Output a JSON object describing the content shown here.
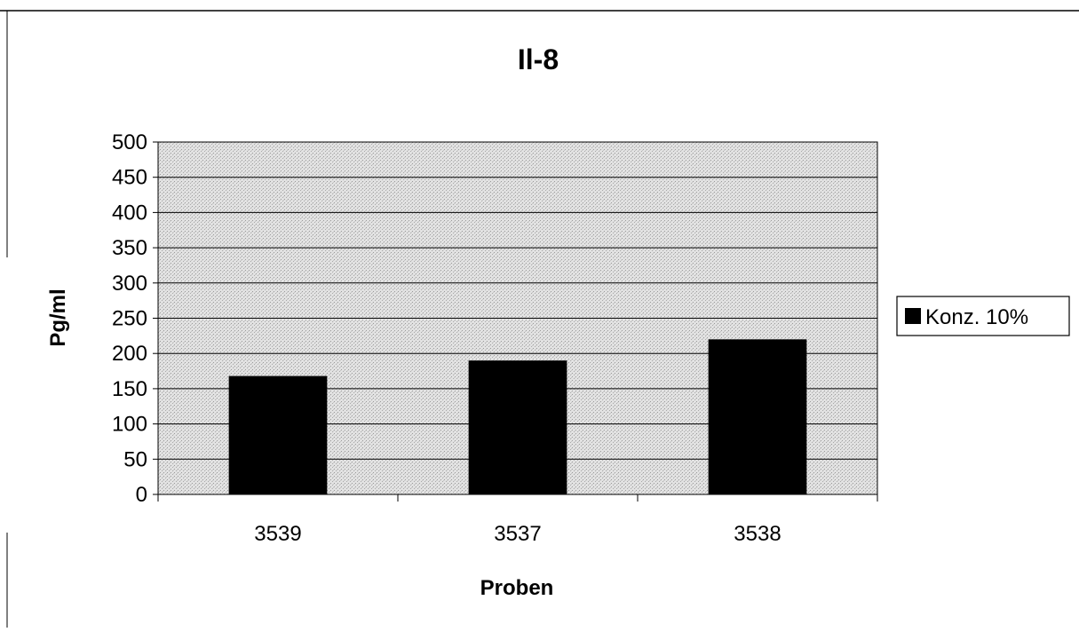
{
  "chart_data": {
    "type": "bar",
    "title": "Il-8",
    "xlabel": "Proben",
    "ylabel": "Pg/ml",
    "categories": [
      "3539",
      "3537",
      "3538"
    ],
    "series": [
      {
        "name": "Konz. 10%",
        "values": [
          168,
          190,
          220
        ],
        "color": "#000000"
      }
    ],
    "ylim": [
      0,
      500
    ],
    "yticks": [
      0,
      50,
      100,
      150,
      200,
      250,
      300,
      350,
      400,
      450,
      500
    ],
    "grid": true,
    "legend_position": "right",
    "plot_background": "stippled-gray"
  }
}
